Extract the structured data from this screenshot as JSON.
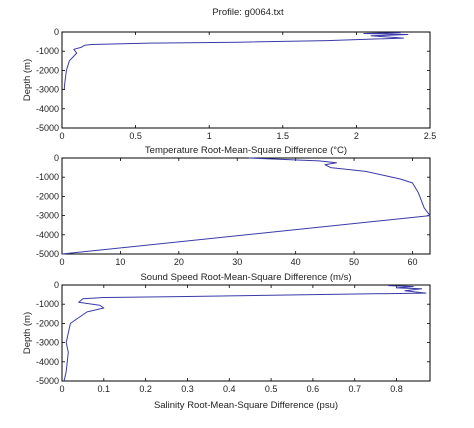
{
  "figure": {
    "title": "Profile: g0064.txt"
  },
  "chart_data": [
    {
      "type": "line",
      "xlabel": "Temperature Root-Mean-Square Difference (°C)",
      "ylabel": "Depth (m)",
      "xlim": [
        0,
        2.5
      ],
      "ylim": [
        -5000,
        0
      ],
      "xticks": [
        "0",
        "0.5",
        "1",
        "1.5",
        "2",
        "2.5"
      ],
      "yticks": [
        "0",
        "-1000",
        "-2000",
        "-3000",
        "-4000",
        "-5000"
      ],
      "series": [
        {
          "color": "#3a3aa8",
          "x": [
            2.3,
            2.05,
            2.35,
            2.1,
            2.32,
            1.8,
            1.2,
            0.6,
            0.2,
            0.15,
            0.13,
            0.08,
            0.1,
            0.05,
            0.03,
            0.02,
            0.015
          ],
          "y": [
            -30,
            -80,
            -130,
            -200,
            -320,
            -450,
            -530,
            -580,
            -650,
            -700,
            -800,
            -900,
            -1100,
            -1500,
            -2000,
            -2600,
            -3000
          ]
        }
      ]
    },
    {
      "type": "line",
      "xlabel": "Sound Speed Root-Mean-Square Difference (m/s)",
      "ylabel": "",
      "xlim": [
        0,
        63
      ],
      "ylim": [
        -5000,
        0
      ],
      "xticks": [
        "0",
        "10",
        "20",
        "30",
        "40",
        "50",
        "60"
      ],
      "yticks": [
        "0",
        "-1000",
        "-2000",
        "-3000",
        "-4000",
        "-5000"
      ],
      "series": [
        {
          "color": "#3a3aa8",
          "x": [
            32,
            44,
            47,
            45,
            46,
            52,
            55,
            58,
            60,
            61,
            62,
            63,
            0
          ],
          "y": [
            0,
            -150,
            -250,
            -350,
            -500,
            -700,
            -900,
            -1100,
            -1300,
            -1800,
            -2600,
            -3000,
            -5000
          ]
        }
      ]
    },
    {
      "type": "line",
      "xlabel": "Salinity Root-Mean-Square Difference (psu)",
      "ylabel": "Depth (m)",
      "xlim": [
        0,
        0.88
      ],
      "ylim": [
        -5000,
        0
      ],
      "xticks": [
        "0",
        "0.1",
        "0.2",
        "0.3",
        "0.4",
        "0.5",
        "0.6",
        "0.7",
        "0.8"
      ],
      "yticks": [
        "0",
        "-1000",
        "-2000",
        "-3000",
        "-4000",
        "-5000"
      ],
      "series": [
        {
          "color": "#3a3aa8",
          "x": [
            0.78,
            0.84,
            0.8,
            0.86,
            0.82,
            0.87,
            0.6,
            0.3,
            0.1,
            0.05,
            0.04,
            0.09,
            0.1,
            0.06,
            0.02,
            0.01,
            0.015,
            0.01,
            0.005
          ],
          "y": [
            -30,
            -80,
            -150,
            -200,
            -300,
            -420,
            -500,
            -600,
            -650,
            -720,
            -900,
            -1050,
            -1200,
            -1400,
            -2000,
            -3000,
            -3500,
            -4500,
            -5000
          ]
        }
      ]
    }
  ]
}
